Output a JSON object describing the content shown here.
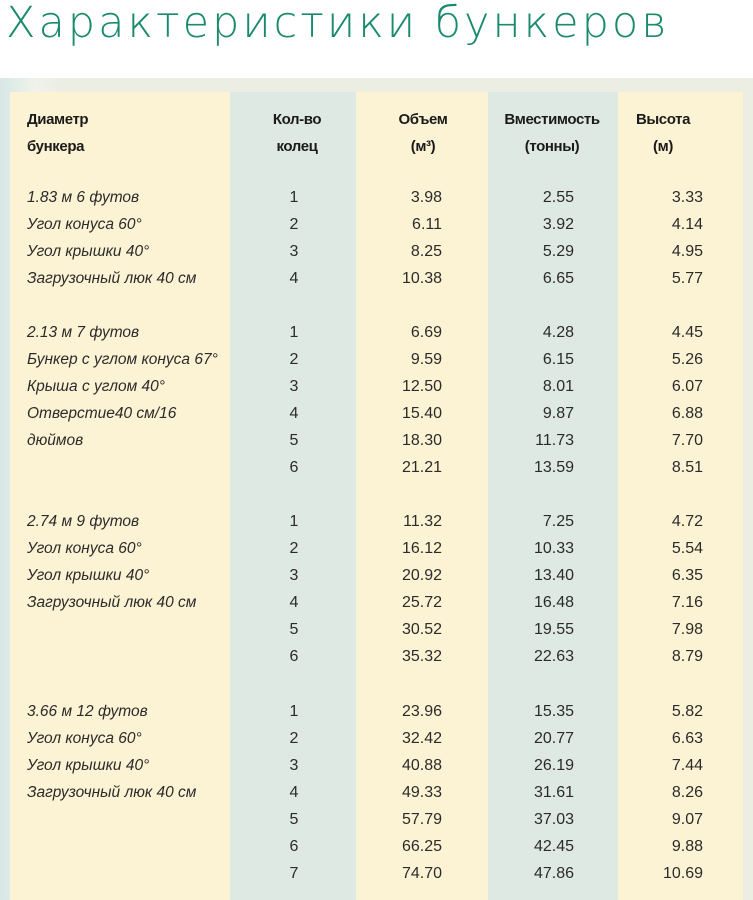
{
  "title": "Характеристики бункеров",
  "headers": {
    "diameter": [
      "Диаметр",
      "бункера"
    ],
    "rings": [
      "Кол-во",
      "колец"
    ],
    "volume": [
      "Объем",
      "(м³)"
    ],
    "capacity": [
      "Вместимость",
      "(тонны)"
    ],
    "height": [
      "Высота",
      "(м)"
    ]
  },
  "colors": {
    "title": "#1a8a6e",
    "table_bg": "#fcf3d4",
    "column_stripe": "#dee9e3"
  },
  "groups": [
    {
      "rows": [
        {
          "desc": "1.83 м 6 футов",
          "rings": "1",
          "volume": "3.98",
          "capacity": "2.55",
          "height": "3.33"
        },
        {
          "desc": "Угол конуса 60°",
          "rings": "2",
          "volume": "6.11",
          "capacity": "3.92",
          "height": "4.14"
        },
        {
          "desc": "Угол крышки  40°",
          "rings": "3",
          "volume": "8.25",
          "capacity": "5.29",
          "height": "4.95"
        },
        {
          "desc": "Загрузочный люк 40 см",
          "rings": "4",
          "volume": "10.38",
          "capacity": "6.65",
          "height": "5.77"
        }
      ]
    },
    {
      "rows": [
        {
          "desc": "2.13 м 7 футов",
          "rings": "1",
          "volume": "6.69",
          "capacity": "4.28",
          "height": "4.45"
        },
        {
          "desc": "Бункер с углом конуса 67°",
          "rings": "2",
          "volume": "9.59",
          "capacity": "6.15",
          "height": "5.26"
        },
        {
          "desc": "Крыша с углом 40°",
          "rings": "3",
          "volume": "12.50",
          "capacity": "8.01",
          "height": "6.07"
        },
        {
          "desc": "Отверстие40 см/16",
          "rings": "4",
          "volume": "15.40",
          "capacity": "9.87",
          "height": "6.88"
        },
        {
          "desc": "дюймов",
          "rings": "5",
          "volume": "18.30",
          "capacity": "11.73",
          "height": "7.70"
        },
        {
          "desc": "",
          "rings": "6",
          "volume": "21.21",
          "capacity": "13.59",
          "height": "8.51"
        }
      ]
    },
    {
      "rows": [
        {
          "desc": "2.74 м 9 футов",
          "rings": "1",
          "volume": "11.32",
          "capacity": "7.25",
          "height": "4.72"
        },
        {
          "desc": "Угол конуса 60°",
          "rings": "2",
          "volume": "16.12",
          "capacity": "10.33",
          "height": "5.54"
        },
        {
          "desc": "Угол крышки  40°",
          "rings": "3",
          "volume": "20.92",
          "capacity": "13.40",
          "height": "6.35"
        },
        {
          "desc": "Загрузочный люк 40 см",
          "rings": "4",
          "volume": "25.72",
          "capacity": "16.48",
          "height": "7.16"
        },
        {
          "desc": "",
          "rings": "5",
          "volume": "30.52",
          "capacity": "19.55",
          "height": "7.98"
        },
        {
          "desc": "",
          "rings": "6",
          "volume": "35.32",
          "capacity": "22.63",
          "height": "8.79"
        }
      ]
    },
    {
      "rows": [
        {
          "desc": "3.66 м 12 футов",
          "rings": "1",
          "volume": "23.96",
          "capacity": "15.35",
          "height": "5.82"
        },
        {
          "desc": "Угол конуса 60°",
          "rings": "2",
          "volume": "32.42",
          "capacity": "20.77",
          "height": "6.63"
        },
        {
          "desc": "Угол крышки  40°",
          "rings": "3",
          "volume": "40.88",
          "capacity": "26.19",
          "height": "7.44"
        },
        {
          "desc": "Загрузочный люк 40 см",
          "rings": "4",
          "volume": "49.33",
          "capacity": "31.61",
          "height": "8.26"
        },
        {
          "desc": "",
          "rings": "5",
          "volume": "57.79",
          "capacity": "37.03",
          "height": "9.07"
        },
        {
          "desc": "",
          "rings": "6",
          "volume": "66.25",
          "capacity": "42.45",
          "height": "9.88"
        },
        {
          "desc": "",
          "rings": "7",
          "volume": "74.70",
          "capacity": "47.86",
          "height": "10.69"
        }
      ]
    }
  ]
}
